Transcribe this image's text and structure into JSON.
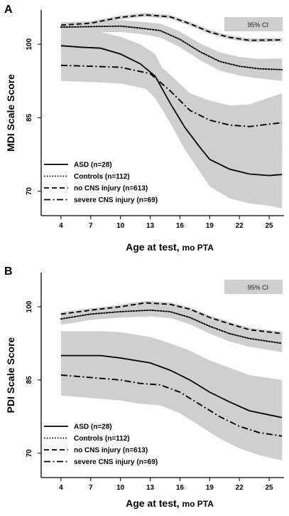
{
  "chart_data": [
    {
      "type": "line",
      "panel": "A",
      "ylabel": "MDI Scale Score",
      "xlabel": "Age at test,",
      "xlabel_unit": "mo PTA",
      "x": [
        4,
        7,
        10,
        13,
        16,
        19,
        22,
        25
      ],
      "xlim": [
        2,
        26.5
      ],
      "ylim": [
        65,
        107
      ],
      "yticks": [
        70,
        85,
        100
      ],
      "ci_legend": "95% CI",
      "legend_position": "bottom-left",
      "series": [
        {
          "name": "ASD (n=28)",
          "style": "solid",
          "points": [
            [
              4,
              99.7
            ],
            [
              6,
              99.4
            ],
            [
              8,
              99.2
            ],
            [
              10,
              98
            ],
            [
              12,
              96
            ],
            [
              13.5,
              93.5
            ],
            [
              15,
              88
            ],
            [
              16.5,
              83
            ],
            [
              18,
              79
            ],
            [
              19,
              76.5
            ],
            [
              21,
              74.5
            ],
            [
              23,
              73.5
            ],
            [
              25,
              73.2
            ],
            [
              26.3,
              73.4
            ]
          ],
          "ci_low": [
            [
              4,
              96.5
            ],
            [
              6,
              96.2
            ],
            [
              8,
              95.8
            ],
            [
              10,
              94.5
            ],
            [
              12,
              92
            ],
            [
              13.5,
              89
            ],
            [
              15,
              84
            ],
            [
              16.5,
              78.5
            ],
            [
              18,
              74
            ],
            [
              19,
              71
            ],
            [
              21,
              68.5
            ],
            [
              23,
              67.5
            ],
            [
              25,
              67
            ],
            [
              26.3,
              66.5
            ]
          ],
          "ci_high": [
            [
              4,
              102.8
            ],
            [
              6,
              102.6
            ],
            [
              8,
              102.5
            ],
            [
              10,
              101.5
            ],
            [
              12,
              100
            ],
            [
              13.5,
              98
            ],
            [
              15,
              92
            ],
            [
              16.5,
              87.5
            ],
            [
              18,
              84
            ],
            [
              19,
              82
            ],
            [
              21,
              80.5
            ],
            [
              23,
              79.5
            ],
            [
              25,
              79.5
            ],
            [
              26.3,
              80
            ]
          ]
        },
        {
          "name": "Controls (n=112)",
          "style": "dotted",
          "points": [
            [
              4,
              103.5
            ],
            [
              7,
              103.6
            ],
            [
              10,
              103.7
            ],
            [
              12,
              103.3
            ],
            [
              14,
              102.8
            ],
            [
              16,
              101
            ],
            [
              18,
              98.5
            ],
            [
              20,
              96.5
            ],
            [
              22,
              95.5
            ],
            [
              24,
              95
            ],
            [
              26.3,
              94.8
            ]
          ],
          "ci_low": [
            [
              4,
              102.5
            ],
            [
              7,
              102.5
            ],
            [
              10,
              102.5
            ],
            [
              12,
              102.1
            ],
            [
              14,
              101.4
            ],
            [
              16,
              99.4
            ],
            [
              18,
              96.8
            ],
            [
              20,
              94.6
            ],
            [
              22,
              93.6
            ],
            [
              24,
              93
            ],
            [
              26.3,
              92.5
            ]
          ],
          "ci_high": [
            [
              4,
              104.5
            ],
            [
              7,
              104.7
            ],
            [
              10,
              104.9
            ],
            [
              12,
              104.6
            ],
            [
              14,
              104.2
            ],
            [
              16,
              102.6
            ],
            [
              18,
              100.2
            ],
            [
              20,
              98.4
            ],
            [
              22,
              97.4
            ],
            [
              24,
              97
            ],
            [
              26.3,
              97.1
            ]
          ]
        },
        {
          "name": "no CNS injury (n=613)",
          "style": "dashed",
          "points": [
            [
              4,
              103.9
            ],
            [
              7,
              104.3
            ],
            [
              10,
              105.5
            ],
            [
              12.5,
              106
            ],
            [
              15,
              105.6
            ],
            [
              17,
              104.2
            ],
            [
              19,
              102.5
            ],
            [
              21,
              101.4
            ],
            [
              23,
              100.8
            ],
            [
              26.3,
              100.9
            ]
          ],
          "ci_low": [
            [
              4,
              103.5
            ],
            [
              7,
              103.9
            ],
            [
              10,
              105.1
            ],
            [
              12.5,
              105.6
            ],
            [
              15,
              105.2
            ],
            [
              17,
              103.8
            ],
            [
              19,
              102.1
            ],
            [
              21,
              101
            ],
            [
              23,
              100.4
            ],
            [
              26.3,
              100.5
            ]
          ],
          "ci_high": [
            [
              4,
              104.3
            ],
            [
              7,
              104.7
            ],
            [
              10,
              105.9
            ],
            [
              12.5,
              106.4
            ],
            [
              15,
              106
            ],
            [
              17,
              104.6
            ],
            [
              19,
              102.9
            ],
            [
              21,
              101.8
            ],
            [
              23,
              101.2
            ],
            [
              26.3,
              101.3
            ]
          ]
        },
        {
          "name": "severe CNS injury (n=69)",
          "style": "dashdot",
          "points": [
            [
              4,
              95.7
            ],
            [
              7,
              95.5
            ],
            [
              10,
              95.3
            ],
            [
              13,
              94
            ],
            [
              15,
              90.5
            ],
            [
              17,
              86.5
            ],
            [
              19,
              84.5
            ],
            [
              21,
              83.5
            ],
            [
              23,
              83.2
            ],
            [
              26.3,
              84
            ]
          ],
          "ci_low": [
            [
              4,
              92.5
            ],
            [
              7,
              92.3
            ],
            [
              10,
              92
            ],
            [
              13,
              90.7
            ],
            [
              15,
              87.2
            ],
            [
              17,
              83
            ],
            [
              19,
              80.5
            ],
            [
              21,
              79.5
            ],
            [
              23,
              78.7
            ],
            [
              26.3,
              78
            ]
          ],
          "ci_high": [
            [
              4,
              98.9
            ],
            [
              7,
              98.7
            ],
            [
              10,
              98.6
            ],
            [
              13,
              97.3
            ],
            [
              15,
              93.8
            ],
            [
              17,
              90
            ],
            [
              19,
              88.5
            ],
            [
              21,
              87.5
            ],
            [
              23,
              87.7
            ],
            [
              26.3,
              90
            ]
          ]
        }
      ]
    },
    {
      "type": "line",
      "panel": "B",
      "ylabel": "PDI Scale Score",
      "xlabel": "Age at test,",
      "xlabel_unit": "mo PTA",
      "x": [
        4,
        7,
        10,
        13,
        16,
        19,
        22,
        25
      ],
      "xlim": [
        2,
        26.5
      ],
      "ylim": [
        65,
        107
      ],
      "yticks": [
        70,
        85,
        100
      ],
      "ci_legend": "95% CI",
      "legend_position": "bottom-left",
      "series": [
        {
          "name": "ASD (n=28)",
          "style": "solid",
          "points": [
            [
              4,
              90
            ],
            [
              8,
              90
            ],
            [
              10,
              89.5
            ],
            [
              13,
              88.5
            ],
            [
              15,
              87
            ],
            [
              17,
              85
            ],
            [
              19,
              82.5
            ],
            [
              21,
              80.5
            ],
            [
              23,
              78.7
            ],
            [
              26.3,
              77.3
            ]
          ],
          "ci_low": [
            [
              4,
              85
            ],
            [
              8,
              85
            ],
            [
              10,
              84.5
            ],
            [
              13,
              83.5
            ],
            [
              15,
              81.5
            ],
            [
              17,
              79
            ],
            [
              19,
              76
            ],
            [
              21,
              73.5
            ],
            [
              23,
              71.5
            ],
            [
              26.3,
              69.5
            ]
          ],
          "ci_high": [
            [
              4,
              95
            ],
            [
              8,
              95
            ],
            [
              10,
              94.8
            ],
            [
              13,
              93.8
            ],
            [
              15,
              92.5
            ],
            [
              17,
              91
            ],
            [
              19,
              89
            ],
            [
              21,
              87.5
            ],
            [
              23,
              86
            ],
            [
              26.3,
              85
            ]
          ]
        },
        {
          "name": "Controls (n=112)",
          "style": "dotted",
          "points": [
            [
              4,
              97.5
            ],
            [
              7,
              98.5
            ],
            [
              10,
              99
            ],
            [
              13,
              99.3
            ],
            [
              15,
              99
            ],
            [
              17,
              97.8
            ],
            [
              19,
              96
            ],
            [
              21,
              94.5
            ],
            [
              23,
              93.5
            ],
            [
              26.3,
              92.5
            ]
          ],
          "ci_low": [
            [
              4,
              96.3
            ],
            [
              7,
              97.3
            ],
            [
              10,
              97.8
            ],
            [
              13,
              98
            ],
            [
              15,
              97.7
            ],
            [
              17,
              96.4
            ],
            [
              19,
              94.5
            ],
            [
              21,
              92.9
            ],
            [
              23,
              91.8
            ],
            [
              26.3,
              90.7
            ]
          ],
          "ci_high": [
            [
              4,
              98.7
            ],
            [
              7,
              99.7
            ],
            [
              10,
              100.2
            ],
            [
              13,
              100.6
            ],
            [
              15,
              100.3
            ],
            [
              17,
              99.2
            ],
            [
              19,
              97.5
            ],
            [
              21,
              96.1
            ],
            [
              23,
              95.2
            ],
            [
              26.3,
              94.3
            ]
          ]
        },
        {
          "name": "no CNS injury (n=613)",
          "style": "dashed",
          "points": [
            [
              4,
              98.5
            ],
            [
              7,
              99.3
            ],
            [
              10,
              100
            ],
            [
              12.5,
              100.8
            ],
            [
              15,
              100.5
            ],
            [
              17,
              99.5
            ],
            [
              19,
              97.8
            ],
            [
              21,
              96.5
            ],
            [
              23,
              95.3
            ],
            [
              26.3,
              94.5
            ]
          ],
          "ci_low": [
            [
              4,
              98.1
            ],
            [
              7,
              98.9
            ],
            [
              10,
              99.6
            ],
            [
              12.5,
              100.4
            ],
            [
              15,
              100.1
            ],
            [
              17,
              99.1
            ],
            [
              19,
              97.4
            ],
            [
              21,
              96.1
            ],
            [
              23,
              94.9
            ],
            [
              26.3,
              94.1
            ]
          ],
          "ci_high": [
            [
              4,
              98.9
            ],
            [
              7,
              99.7
            ],
            [
              10,
              100.4
            ],
            [
              12.5,
              101.2
            ],
            [
              15,
              100.9
            ],
            [
              17,
              99.9
            ],
            [
              19,
              98.2
            ],
            [
              21,
              96.9
            ],
            [
              23,
              95.7
            ],
            [
              26.3,
              94.9
            ]
          ]
        },
        {
          "name": "severe CNS injury (n=69)",
          "style": "dashdot",
          "points": [
            [
              4,
              86
            ],
            [
              7,
              85.5
            ],
            [
              10,
              85
            ],
            [
              12,
              84.3
            ],
            [
              14,
              84
            ],
            [
              16,
              82.5
            ],
            [
              18,
              80
            ],
            [
              20,
              77.5
            ],
            [
              22,
              75.5
            ],
            [
              24,
              74.2
            ],
            [
              26.3,
              73.5
            ]
          ],
          "ci_low": [
            [
              4,
              81.8
            ],
            [
              7,
              81.3
            ],
            [
              10,
              80.8
            ],
            [
              12,
              80.1
            ],
            [
              14,
              79.8
            ],
            [
              16,
              78.2
            ],
            [
              18,
              75.6
            ],
            [
              20,
              73
            ],
            [
              22,
              71
            ],
            [
              24,
              69.6
            ],
            [
              26.3,
              68.5
            ]
          ],
          "ci_high": [
            [
              4,
              90.2
            ],
            [
              7,
              89.7
            ],
            [
              10,
              89.2
            ],
            [
              12,
              88.5
            ],
            [
              14,
              88.2
            ],
            [
              16,
              86.8
            ],
            [
              18,
              84.4
            ],
            [
              20,
              82
            ],
            [
              22,
              80
            ],
            [
              24,
              78.8
            ],
            [
              26.3,
              78.5
            ]
          ]
        }
      ]
    }
  ]
}
